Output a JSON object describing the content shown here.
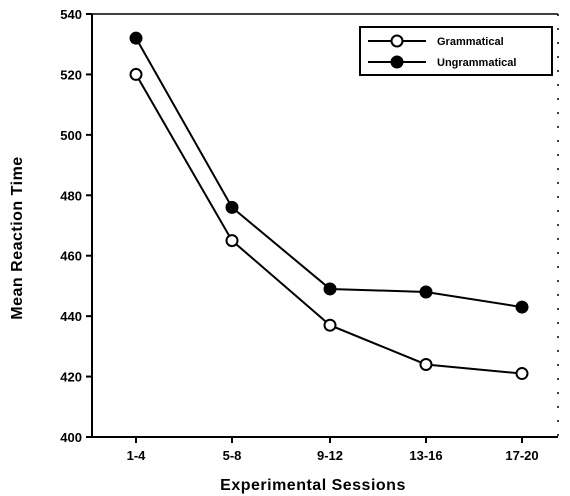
{
  "chart_data": {
    "type": "line",
    "categories": [
      "1-4",
      "5-8",
      "9-12",
      "13-16",
      "17-20"
    ],
    "series": [
      {
        "name": "Grammatical",
        "marker": "open-circle",
        "values": [
          520,
          465,
          437,
          424,
          421
        ]
      },
      {
        "name": "Ungrammatical",
        "marker": "filled-circle",
        "values": [
          532,
          476,
          449,
          448,
          443
        ]
      }
    ],
    "title": "",
    "xlabel": "Experimental Sessions",
    "ylabel": "Mean Reaction Time",
    "ylim": [
      400,
      540
    ],
    "yticks": [
      400,
      420,
      440,
      460,
      480,
      500,
      520,
      540
    ],
    "grid": false,
    "legend_position": "top-right",
    "colors": {
      "line": "#000000",
      "background": "#ffffff"
    }
  }
}
